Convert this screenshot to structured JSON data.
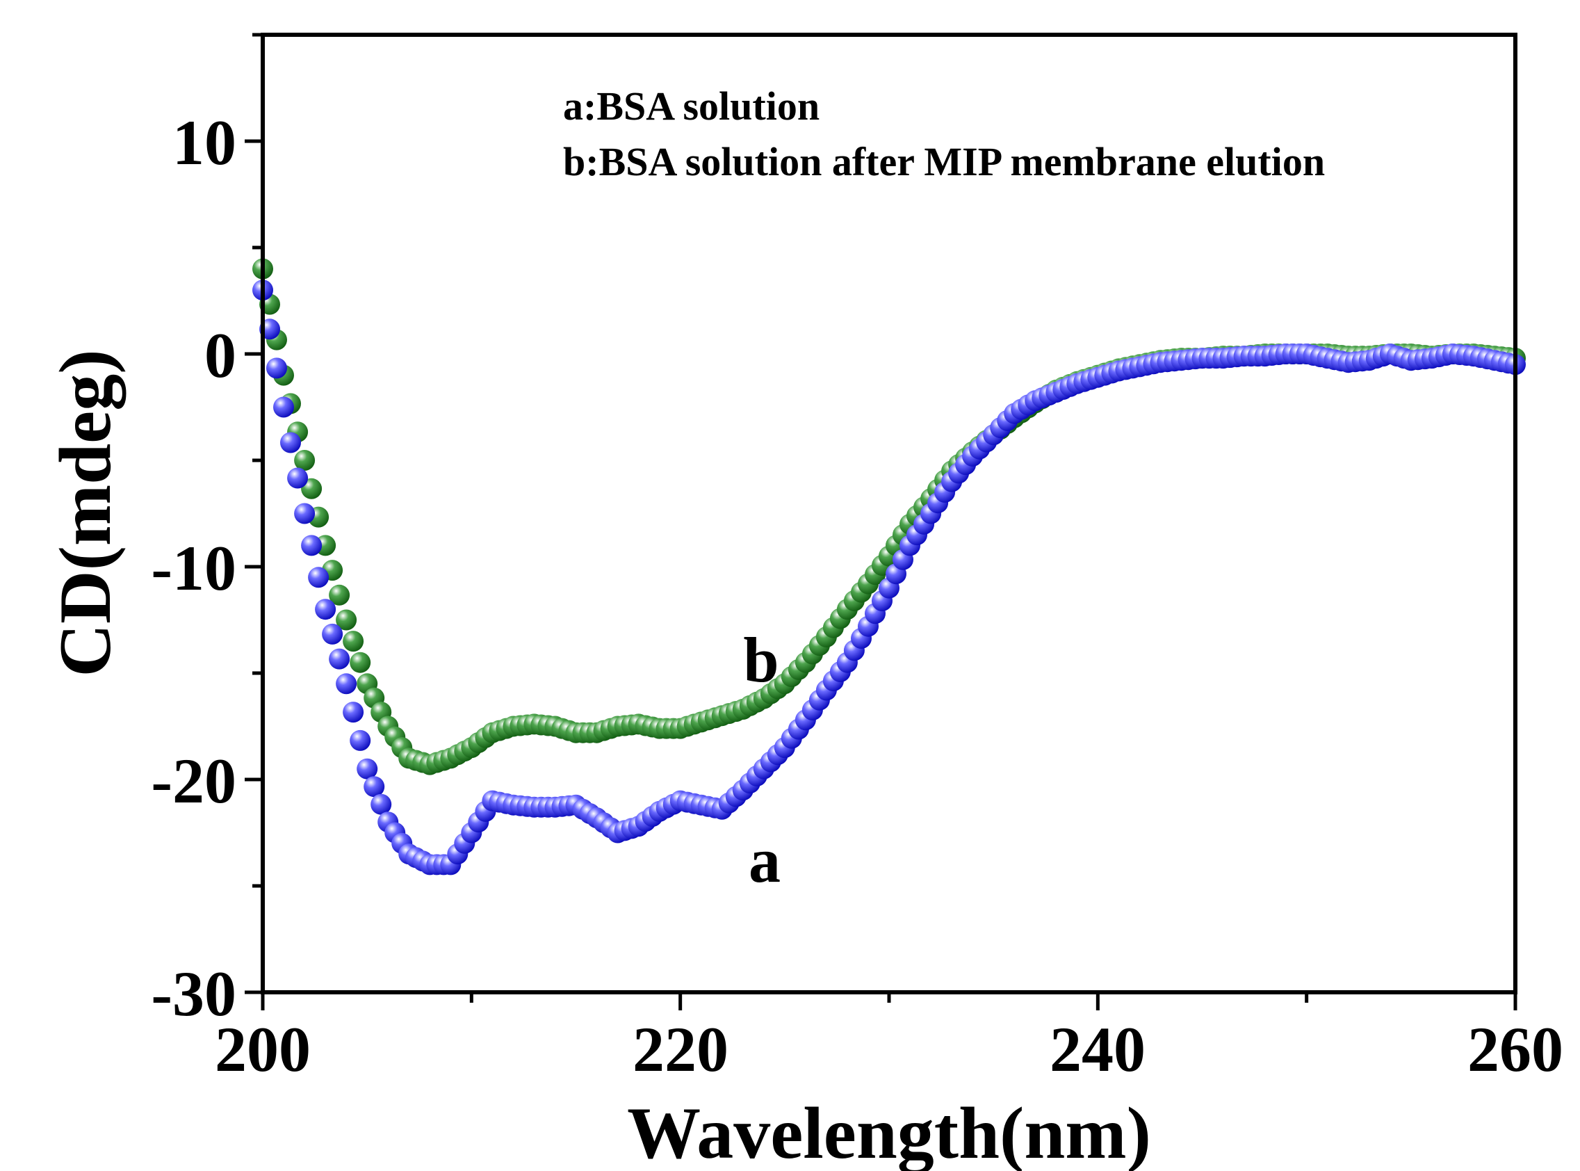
{
  "chart_data": {
    "type": "scatter",
    "xlabel": "Wavelength(nm)",
    "ylabel": "CD(mdeg)",
    "xlim": [
      200,
      260
    ],
    "ylim": [
      -30,
      15
    ],
    "xticks": [
      200,
      220,
      240,
      260
    ],
    "yticks": [
      -30,
      -20,
      -10,
      0,
      10
    ],
    "xtick_labels": [
      "200",
      "220",
      "240",
      "260"
    ],
    "ytick_labels": [
      "-30",
      "-20",
      "-10",
      "0",
      "10"
    ],
    "legend_position": "top-right",
    "legend": [
      "a:BSA solution",
      "b:BSA solution after MIP membrane elution"
    ],
    "series": [
      {
        "label": "a",
        "color": "#1515e6",
        "x": [
          200,
          201,
          202,
          203,
          204,
          205,
          206,
          207,
          208,
          209,
          210,
          211,
          212,
          213,
          214,
          215,
          216,
          217,
          218,
          219,
          220,
          221,
          222,
          223,
          224,
          225,
          226,
          227,
          228,
          229,
          230,
          231,
          232,
          233,
          234,
          235,
          236,
          237,
          238,
          239,
          240,
          241,
          242,
          243,
          244,
          245,
          246,
          247,
          248,
          249,
          250,
          251,
          252,
          253,
          254,
          255,
          256,
          257,
          258,
          259,
          260
        ],
        "y": [
          3.0,
          -2.5,
          -7.5,
          -12,
          -15.5,
          -19.5,
          -22,
          -23.5,
          -24,
          -24,
          -22.5,
          -21,
          -21.2,
          -21.3,
          -21.3,
          -21.2,
          -21.8,
          -22.5,
          -22.2,
          -21.5,
          -21.0,
          -21.2,
          -21.4,
          -20.5,
          -19.5,
          -18.5,
          -17.2,
          -15.8,
          -14.5,
          -12.8,
          -11.0,
          -9.0,
          -7.5,
          -6.0,
          -4.8,
          -3.8,
          -2.8,
          -2.2,
          -1.8,
          -1.4,
          -1.1,
          -0.8,
          -0.6,
          -0.4,
          -0.3,
          -0.2,
          -0.2,
          -0.1,
          -0.1,
          0.0,
          0.0,
          -0.2,
          -0.4,
          -0.3,
          0.0,
          -0.3,
          -0.2,
          0.0,
          -0.1,
          -0.3,
          -0.5
        ]
      },
      {
        "label": "b",
        "color": "#1e7d1e",
        "x": [
          200,
          201,
          202,
          203,
          204,
          205,
          206,
          207,
          208,
          209,
          210,
          211,
          212,
          213,
          214,
          215,
          216,
          217,
          218,
          219,
          220,
          221,
          222,
          223,
          224,
          225,
          226,
          227,
          228,
          229,
          230,
          231,
          232,
          233,
          234,
          235,
          236,
          237,
          238,
          239,
          240,
          241,
          242,
          243,
          244,
          245,
          246,
          247,
          248,
          249,
          250,
          251,
          252,
          253,
          254,
          255,
          256,
          257,
          258,
          259,
          260
        ],
        "y": [
          4.0,
          -1.0,
          -5.0,
          -9.0,
          -12.5,
          -15.5,
          -17.5,
          -19.0,
          -19.3,
          -19.0,
          -18.5,
          -17.8,
          -17.5,
          -17.4,
          -17.5,
          -17.8,
          -17.8,
          -17.5,
          -17.4,
          -17.6,
          -17.6,
          -17.3,
          -17.0,
          -16.7,
          -16.2,
          -15.5,
          -14.5,
          -13.3,
          -12.0,
          -10.8,
          -9.5,
          -8.0,
          -6.8,
          -5.5,
          -4.6,
          -3.8,
          -3.0,
          -2.3,
          -1.7,
          -1.3,
          -1.0,
          -0.7,
          -0.5,
          -0.3,
          -0.2,
          -0.2,
          -0.1,
          -0.1,
          0.0,
          0.0,
          0.0,
          0.0,
          -0.1,
          -0.1,
          0.0,
          0.0,
          -0.1,
          0.0,
          0.0,
          -0.1,
          -0.2
        ]
      }
    ]
  }
}
